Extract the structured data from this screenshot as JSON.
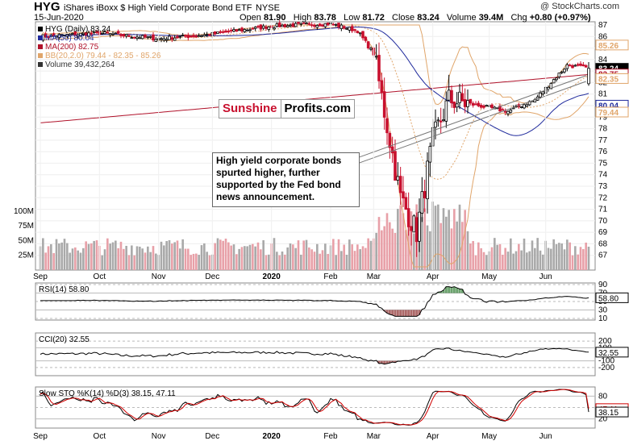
{
  "header": {
    "symbol": "HYG",
    "name": "iShares iBoxx $ High Yield Corporate Bond ETF",
    "exchange": "NYSE",
    "date": "15-Jun-2020",
    "open_label": "Open",
    "open": "81.90",
    "high_label": "High",
    "high": "83.78",
    "low_label": "Low",
    "low": "81.72",
    "close_label": "Close",
    "close": "83.24",
    "volume_label": "Volume",
    "volume": "39.4M",
    "chg_label": "Chg",
    "chg": "+0.80 (+0.97%)",
    "credit": "@ StockCharts.com"
  },
  "legend": {
    "price": "HYG (Daily) 83.24",
    "ma50": "MA(50) 80.04",
    "ma200": "MA(200) 82.75",
    "bb": "BB(20,2.0) 79.44 - 82.35 - 85.26",
    "volume": "Volume 39,432,264"
  },
  "logo": {
    "part1": "Sunshine",
    "part2": "Profits.com"
  },
  "annotation": "High yield corporate bonds spurted higher, further supported by the Fed bond news announcement.",
  "colors": {
    "up": "#000000",
    "down": "#c8102e",
    "ma50": "#1f2a9c",
    "ma200": "#b0122a",
    "bb": "#e0a56a",
    "vol_up": "#a9a9a9",
    "vol_down": "#e8a0a8",
    "osc_pos": "#2e7d32",
    "osc_neg": "#8b2b2b",
    "sto_d": "#d00000",
    "badge_dark": "#000000",
    "badge_blue": "#1f2a9c",
    "badge_red": "#b0122a",
    "badge_orange": "#e0a56a"
  },
  "chart_data": [
    {
      "type": "candlestick",
      "title": "HYG (Daily) 83.24",
      "x_ticks": [
        "Sep",
        "Oct",
        "Nov",
        "Dec",
        "2020",
        "Feb",
        "Mar",
        "Apr",
        "May",
        "Jun"
      ],
      "ylim": [
        66,
        87
      ],
      "y_ticks": [
        67,
        68,
        69,
        70,
        71,
        72,
        73,
        74,
        75,
        76,
        77,
        78,
        79,
        80,
        81,
        82,
        83,
        84,
        85,
        86,
        87
      ],
      "volume_ticks": [
        "25M",
        "50M",
        "75M",
        "100M"
      ],
      "badges": [
        "85.26",
        "83.24",
        "82.75",
        "82.35",
        "80.04",
        "79.44"
      ],
      "close_keypoints": [
        {
          "date": "Sep",
          "value": 86.0
        },
        {
          "date": "Oct",
          "value": 86.3
        },
        {
          "date": "Nov",
          "value": 85.8
        },
        {
          "date": "Dec",
          "value": 86.2
        },
        {
          "date": "2020",
          "value": 86.9
        },
        {
          "date": "Feb",
          "value": 87.1
        },
        {
          "date": "late Feb",
          "value": 86.5
        },
        {
          "date": "Mar",
          "value": 84.5
        },
        {
          "date": "mid Mar",
          "value": 72.0
        },
        {
          "date": "late Mar",
          "value": 69.0
        },
        {
          "date": "early Apr",
          "value": 77.0
        },
        {
          "date": "Apr",
          "value": 80.5
        },
        {
          "date": "May",
          "value": 79.5
        },
        {
          "date": "late May",
          "value": 80.5
        },
        {
          "date": "Jun",
          "value": 83.5
        },
        {
          "date": "mid Jun",
          "value": 83.24
        }
      ]
    },
    {
      "type": "line",
      "title": "RSI(14) 58.80",
      "ylim": [
        10,
        90
      ],
      "y_ticks": [
        "90",
        "70",
        "50",
        "30",
        "10"
      ],
      "last": "58.80"
    },
    {
      "type": "line",
      "title": "CCI(20) 32.55",
      "ylim": [
        -300,
        300
      ],
      "y_ticks": [
        "200",
        "100",
        "-100",
        "-200"
      ],
      "last": "32.55"
    },
    {
      "type": "line",
      "title": "Slow STO %K(14) %D(3) 38.15, 47.11",
      "ylim": [
        0,
        100
      ],
      "y_ticks": [
        "80",
        "50",
        "20"
      ],
      "last_k": "38.15",
      "last_d": "47.11"
    }
  ]
}
